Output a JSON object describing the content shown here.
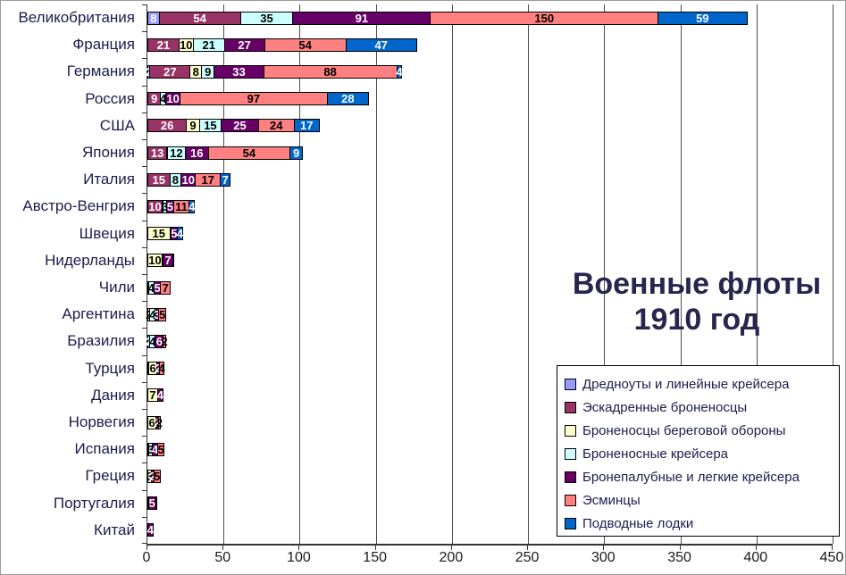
{
  "window": {
    "background": "#ffffff",
    "border_color": "#9a9a9a"
  },
  "chart_data": {
    "type": "bar",
    "stacked": true,
    "orientation": "horizontal",
    "title": "Военные флоты 1910 год",
    "title_lines": [
      "Военные флоты",
      "1910 год"
    ],
    "title_color": "#26264f",
    "xlabel": "",
    "ylabel": "",
    "xlim": [
      0,
      450
    ],
    "x_ticks": [
      0,
      50,
      100,
      150,
      200,
      250,
      300,
      350,
      400,
      450
    ],
    "grid": true,
    "gridline_color": "#4d4d4d",
    "legend_position": "bottom-right",
    "category_label_color": "#1c1c4e",
    "categories": [
      "Великобритания",
      "Франция",
      "Германия",
      "Россия",
      "США",
      "Япония",
      "Италия",
      "Австро-Венгрия",
      "Швеция",
      "Нидерланды",
      "Чили",
      "Аргентина",
      "Бразилия",
      "Турция",
      "Дания",
      "Норвегия",
      "Испания",
      "Греция",
      "Португалия",
      "Китай"
    ],
    "series": [
      {
        "name": "Дредноуты и линейные крейсера",
        "color": "#9999FF",
        "label_color": "#ffffff",
        "values": [
          8,
          0,
          2,
          0,
          0,
          0,
          0,
          0,
          0,
          0,
          0,
          0,
          2,
          0,
          0,
          0,
          0,
          0,
          0,
          0
        ]
      },
      {
        "name": "Эскадренные броненосцы",
        "color": "#993366",
        "label_color": "#ffffff",
        "values": [
          54,
          21,
          27,
          9,
          26,
          13,
          15,
          10,
          0,
          0,
          1,
          0,
          0,
          1,
          0,
          0,
          1,
          0,
          1,
          0
        ]
      },
      {
        "name": "Броненосцы береговой обороны",
        "color": "#FFFFCC",
        "label_color": "#000000",
        "values": [
          0,
          10,
          8,
          0,
          9,
          1,
          0,
          1,
          15,
          10,
          0,
          2,
          0,
          6,
          7,
          6,
          0,
          3,
          0,
          0
        ]
      },
      {
        "name": "Броненосные крейсера",
        "color": "#CCFFFF",
        "label_color": "#000000",
        "values": [
          35,
          21,
          9,
          4,
          15,
          12,
          8,
          3,
          1,
          1,
          4,
          4,
          4,
          0,
          0,
          0,
          3,
          0,
          0,
          0
        ]
      },
      {
        "name": "Бронепалубные и легкие крейсера",
        "color": "#660066",
        "label_color": "#ffffff",
        "values": [
          91,
          27,
          33,
          10,
          25,
          16,
          10,
          5,
          5,
          7,
          5,
          3,
          6,
          2,
          4,
          2,
          4,
          2,
          5,
          4
        ]
      },
      {
        "name": "Эсминцы",
        "color": "#FF8080",
        "label_color": "#000000",
        "values": [
          150,
          54,
          88,
          97,
          24,
          54,
          17,
          11,
          0,
          0,
          7,
          5,
          2,
          4,
          0,
          2,
          5,
          5,
          1,
          0
        ]
      },
      {
        "name": "Подводные лодки",
        "color": "#0066CC",
        "label_color": "#ffffff",
        "values": [
          59,
          47,
          4,
          28,
          17,
          9,
          7,
          4,
          4,
          1,
          0,
          0,
          0,
          0,
          0,
          0,
          0,
          0,
          0,
          0
        ]
      }
    ]
  }
}
